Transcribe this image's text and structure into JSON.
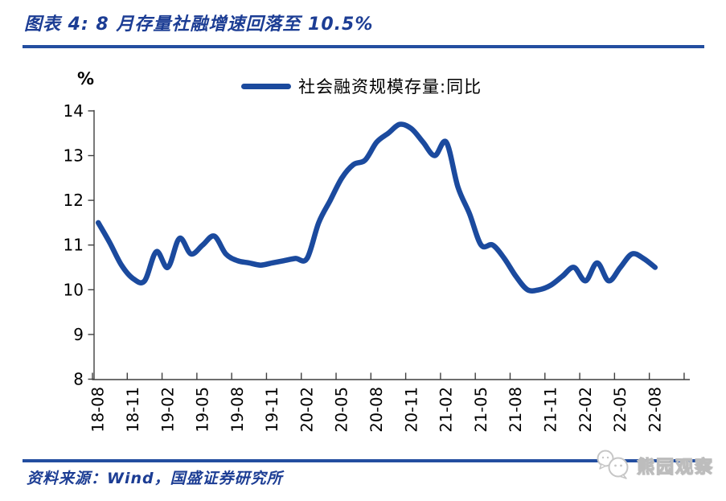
{
  "page": {
    "title": "图表 4: 8 月存量社融增速回落至 10.5%",
    "source": "资料来源：Wind，国盛证券研究所",
    "watermark": "熊园观察"
  },
  "colors": {
    "title_blue": "#1c3d94",
    "rule_blue": "#234ea0",
    "line_blue": "#1b4a9e",
    "axis_gray": "#3f3f3f"
  },
  "chart_data": {
    "type": "line",
    "unit_label": "%",
    "legend": [
      "社会融资规模存量:同比"
    ],
    "legend_position": "top-center",
    "grid": false,
    "ylim": [
      8,
      14
    ],
    "yticks": [
      8,
      9,
      10,
      11,
      12,
      13,
      14
    ],
    "x_tick_labels": [
      "18-08",
      "18-11",
      "19-02",
      "19-05",
      "19-08",
      "19-11",
      "20-02",
      "20-05",
      "20-08",
      "20-11",
      "21-02",
      "21-05",
      "21-08",
      "21-11",
      "22-02",
      "22-05",
      "22-08"
    ],
    "x": [
      "18-08",
      "18-09",
      "18-10",
      "18-11",
      "18-12",
      "19-01",
      "19-02",
      "19-03",
      "19-04",
      "19-05",
      "19-06",
      "19-07",
      "19-08",
      "19-09",
      "19-10",
      "19-11",
      "19-12",
      "20-01",
      "20-02",
      "20-03",
      "20-04",
      "20-05",
      "20-06",
      "20-07",
      "20-08",
      "20-09",
      "20-10",
      "20-11",
      "20-12",
      "21-01",
      "21-02",
      "21-03",
      "21-04",
      "21-05",
      "21-06",
      "21-07",
      "21-08",
      "21-09",
      "21-10",
      "21-11",
      "21-12",
      "22-01",
      "22-02",
      "22-03",
      "22-04",
      "22-05",
      "22-06",
      "22-07",
      "22-08"
    ],
    "series": [
      {
        "name": "社会融资规模存量:同比",
        "values": [
          11.5,
          11.05,
          10.55,
          10.25,
          10.2,
          10.85,
          10.5,
          11.15,
          10.8,
          11.0,
          11.2,
          10.8,
          10.65,
          10.6,
          10.55,
          10.6,
          10.65,
          10.7,
          10.7,
          11.5,
          12.0,
          12.5,
          12.8,
          12.9,
          13.3,
          13.5,
          13.7,
          13.6,
          13.3,
          13.0,
          13.3,
          12.3,
          11.7,
          11.0,
          11.0,
          10.7,
          10.3,
          10.0,
          10.0,
          10.1,
          10.3,
          10.5,
          10.2,
          10.6,
          10.2,
          10.5,
          10.8,
          10.7,
          10.5
        ]
      }
    ]
  }
}
